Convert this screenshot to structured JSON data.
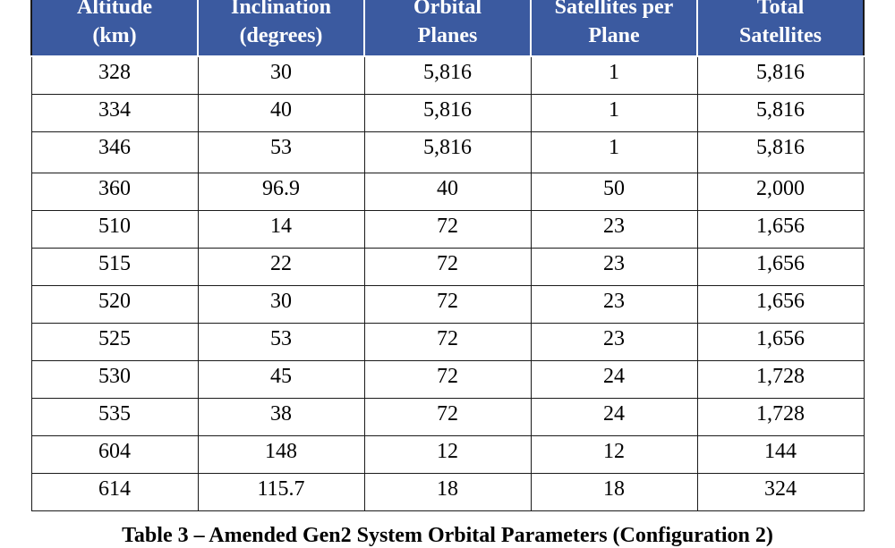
{
  "table": {
    "headers": [
      [
        "Altitude",
        "(km)"
      ],
      [
        "Inclination",
        "(degrees)"
      ],
      [
        "Orbital",
        "Planes"
      ],
      [
        "Satellites per",
        "Plane"
      ],
      [
        "Total",
        "Satellites"
      ]
    ],
    "rows": [
      [
        "328",
        "30",
        "5,816",
        "1",
        "5,816"
      ],
      [
        "334",
        "40",
        "5,816",
        "1",
        "5,816"
      ],
      [
        "346",
        "53",
        "5,816",
        "1",
        "5,816"
      ],
      [
        "360",
        "96.9",
        "40",
        "50",
        "2,000"
      ],
      [
        "510",
        "14",
        "72",
        "23",
        "1,656"
      ],
      [
        "515",
        "22",
        "72",
        "23",
        "1,656"
      ],
      [
        "520",
        "30",
        "72",
        "23",
        "1,656"
      ],
      [
        "525",
        "53",
        "72",
        "23",
        "1,656"
      ],
      [
        "530",
        "45",
        "72",
        "24",
        "1,728"
      ],
      [
        "535",
        "38",
        "72",
        "24",
        "1,728"
      ],
      [
        "604",
        "148",
        "12",
        "12",
        "144"
      ],
      [
        "614",
        "115.7",
        "18",
        "18",
        "324"
      ]
    ]
  },
  "caption": "Table 3 – Amended Gen2 System Orbital Parameters (Configuration 2)",
  "colors": {
    "header_bg": "#3b5aa0",
    "header_text": "#ffffff",
    "border": "#1a1a1a"
  }
}
